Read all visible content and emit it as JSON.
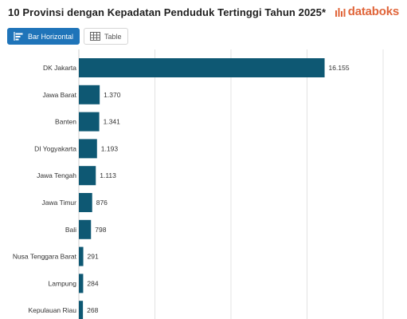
{
  "header": {
    "title": "10 Provinsi dengan Kepadatan Penduduk Tertinggi Tahun 2025*",
    "brand": "databoks",
    "brand_color": "#e0653a"
  },
  "tabs": [
    {
      "label": "Bar Horizontal",
      "icon": "bar-chart-icon",
      "active": true
    },
    {
      "label": "Table",
      "icon": "table-icon",
      "active": false
    }
  ],
  "colors": {
    "bar": "#0e5873",
    "accent": "#1f74b9"
  },
  "chart_data": {
    "type": "bar",
    "orientation": "horizontal",
    "categories": [
      "DK Jakarta",
      "Jawa Barat",
      "Banten",
      "DI Yogyakarta",
      "Jawa Tengah",
      "Jawa Timur",
      "Bali",
      "Nusa Tenggara Barat",
      "Lampung",
      "Kepulauan Riau"
    ],
    "values": [
      16155,
      1370,
      1341,
      1193,
      1113,
      876,
      798,
      291,
      284,
      268
    ],
    "value_labels": [
      "16.155",
      "1.370",
      "1.341",
      "1.193",
      "1.113",
      "876",
      "798",
      "291",
      "284",
      "268"
    ],
    "xlim": [
      0,
      20000
    ],
    "grid": true
  }
}
